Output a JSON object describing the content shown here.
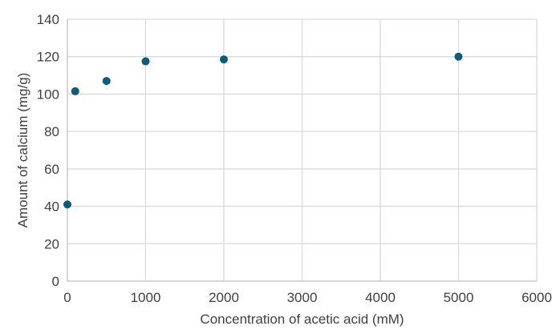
{
  "chart_data": {
    "type": "scatter",
    "title": "",
    "xlabel": "Concentration of acetic acid (mM)",
    "ylabel": "Amount of calcium (mg/g)",
    "xlim": [
      0,
      6000
    ],
    "ylim": [
      0,
      140
    ],
    "x_ticks": [
      0,
      1000,
      2000,
      3000,
      4000,
      5000,
      6000
    ],
    "y_ticks": [
      0,
      20,
      40,
      60,
      80,
      100,
      120,
      140
    ],
    "grid": true,
    "legend": "none",
    "marker_color": "#0a5c78",
    "series": [
      {
        "x": [
          0,
          100,
          500,
          1000,
          2000,
          5000
        ],
        "y": [
          41,
          101.5,
          107,
          117.5,
          118.5,
          120
        ]
      }
    ]
  }
}
